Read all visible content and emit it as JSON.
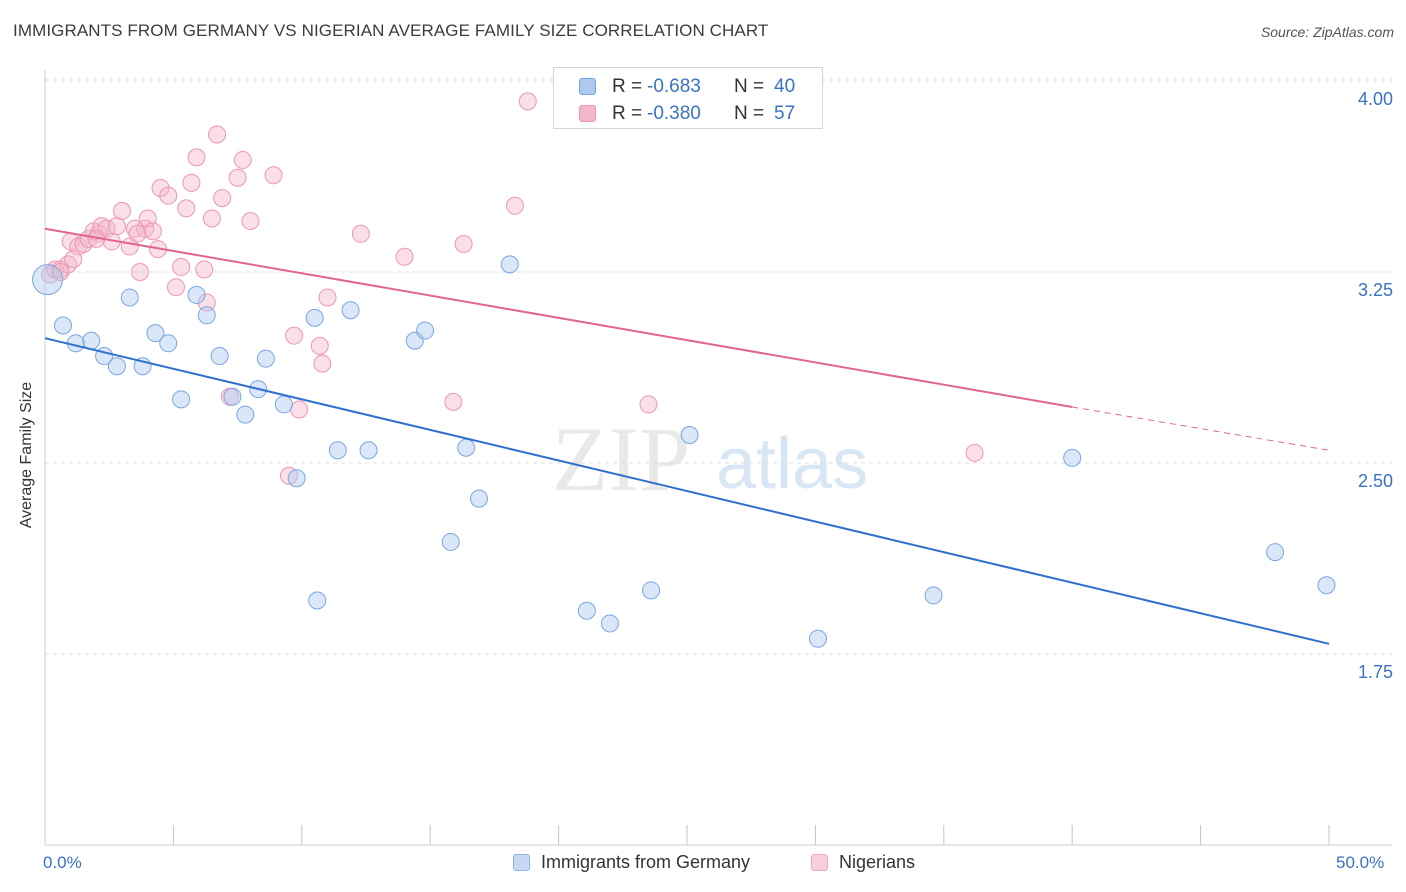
{
  "header": {
    "title": "IMMIGRANTS FROM GERMANY VS NIGERIAN AVERAGE FAMILY SIZE CORRELATION CHART",
    "source": "Source: ZipAtlas.com"
  },
  "watermark": {
    "zip": "ZIP",
    "atlas": "atlas"
  },
  "stats_legend": [
    {
      "r_label": "R =",
      "r_value": "-0.683",
      "n_label": "N =",
      "n_value": "40"
    },
    {
      "r_label": "R =",
      "r_value": "-0.380",
      "n_label": "N =",
      "n_value": "57"
    }
  ],
  "colors": {
    "germany_fill": "#aec9ef",
    "germany_stroke": "#7aa6e0",
    "germany_line": "#2f6fcf",
    "nigeria_fill": "#f5b8cb",
    "nigeria_stroke": "#ec97b2",
    "nigeria_line": "#e0668e",
    "tick_text": "#3a72c4",
    "grid": "#dddddd"
  },
  "chart_data": {
    "type": "scatter",
    "title": "IMMIGRANTS FROM GERMANY VS NIGERIAN AVERAGE FAMILY SIZE CORRELATION CHART",
    "xlabel": "",
    "ylabel": "Average Family Size",
    "xlim": [
      0,
      50
    ],
    "ylim": [
      1.0,
      4.15
    ],
    "x_tick_labels": [
      "0.0%",
      "50.0%"
    ],
    "y_ticks": [
      1.75,
      2.5,
      3.25,
      4.0
    ],
    "y_tick_labels": [
      "1.75",
      "2.50",
      "3.25",
      "4.00"
    ],
    "grid": "horizontal dashed",
    "legend_position": "bottom-center",
    "series": [
      {
        "name": "Immigrants from Germany",
        "color": "#aec9ef",
        "points": [
          [
            0.1,
            3.22
          ],
          [
            0.7,
            3.04
          ],
          [
            1.2,
            2.97
          ],
          [
            1.8,
            2.98
          ],
          [
            2.3,
            2.92
          ],
          [
            2.8,
            2.88
          ],
          [
            3.3,
            3.15
          ],
          [
            3.8,
            2.88
          ],
          [
            4.3,
            3.01
          ],
          [
            4.8,
            2.97
          ],
          [
            5.3,
            2.75
          ],
          [
            5.9,
            3.16
          ],
          [
            6.3,
            3.08
          ],
          [
            6.8,
            2.92
          ],
          [
            7.3,
            2.76
          ],
          [
            7.8,
            2.69
          ],
          [
            8.3,
            2.79
          ],
          [
            8.6,
            2.91
          ],
          [
            9.3,
            2.73
          ],
          [
            9.8,
            2.44
          ],
          [
            10.6,
            1.96
          ],
          [
            10.5,
            3.07
          ],
          [
            11.4,
            2.55
          ],
          [
            11.9,
            3.1
          ],
          [
            12.6,
            2.55
          ],
          [
            14.4,
            2.98
          ],
          [
            14.8,
            3.02
          ],
          [
            15.8,
            2.19
          ],
          [
            16.4,
            2.56
          ],
          [
            16.9,
            2.36
          ],
          [
            18.1,
            3.28
          ],
          [
            21.1,
            1.92
          ],
          [
            22.0,
            1.87
          ],
          [
            23.6,
            2.0
          ],
          [
            25.1,
            2.61
          ],
          [
            30.1,
            1.81
          ],
          [
            34.6,
            1.98
          ],
          [
            40.0,
            2.52
          ],
          [
            47.9,
            2.15
          ],
          [
            49.9,
            2.02
          ]
        ]
      },
      {
        "name": "Nigerians",
        "color": "#f5b8cb",
        "points": [
          [
            0.2,
            3.24
          ],
          [
            0.4,
            3.26
          ],
          [
            0.6,
            3.26
          ],
          [
            0.9,
            3.28
          ],
          [
            1.0,
            3.37
          ],
          [
            1.3,
            3.35
          ],
          [
            1.5,
            3.36
          ],
          [
            1.7,
            3.38
          ],
          [
            1.9,
            3.41
          ],
          [
            2.1,
            3.4
          ],
          [
            2.2,
            3.43
          ],
          [
            2.4,
            3.42
          ],
          [
            2.6,
            3.37
          ],
          [
            2.8,
            3.43
          ],
          [
            3.0,
            3.49
          ],
          [
            3.3,
            3.35
          ],
          [
            3.5,
            3.42
          ],
          [
            3.7,
            3.25
          ],
          [
            3.9,
            3.42
          ],
          [
            4.0,
            3.46
          ],
          [
            4.2,
            3.41
          ],
          [
            4.4,
            3.34
          ],
          [
            4.5,
            3.58
          ],
          [
            4.8,
            3.55
          ],
          [
            5.1,
            3.19
          ],
          [
            5.3,
            3.27
          ],
          [
            5.5,
            3.5
          ],
          [
            5.7,
            3.6
          ],
          [
            5.9,
            3.7
          ],
          [
            6.2,
            3.26
          ],
          [
            6.3,
            3.13
          ],
          [
            6.5,
            3.46
          ],
          [
            6.7,
            3.79
          ],
          [
            6.9,
            3.54
          ],
          [
            7.2,
            2.76
          ],
          [
            7.5,
            3.62
          ],
          [
            7.7,
            3.69
          ],
          [
            8.0,
            3.45
          ],
          [
            8.9,
            3.63
          ],
          [
            9.5,
            2.45
          ],
          [
            9.7,
            3.0
          ],
          [
            9.9,
            2.71
          ],
          [
            10.7,
            2.96
          ],
          [
            10.8,
            2.89
          ],
          [
            11.0,
            3.15
          ],
          [
            12.3,
            3.4
          ],
          [
            14.0,
            3.31
          ],
          [
            15.9,
            2.74
          ],
          [
            16.3,
            3.36
          ],
          [
            18.3,
            3.51
          ],
          [
            18.8,
            3.92
          ],
          [
            23.5,
            2.73
          ],
          [
            36.2,
            2.54
          ],
          [
            0.6,
            3.25
          ],
          [
            1.1,
            3.3
          ],
          [
            2.0,
            3.38
          ],
          [
            3.6,
            3.4
          ]
        ]
      }
    ],
    "trendlines": [
      {
        "series": "Immigrants from Germany",
        "x": [
          0,
          50
        ],
        "y": [
          2.99,
          1.79
        ]
      },
      {
        "series": "Nigerians",
        "x": [
          0,
          40
        ],
        "y": [
          3.42,
          2.72
        ],
        "dashed_extension_to": [
          50,
          2.55
        ]
      }
    ]
  }
}
